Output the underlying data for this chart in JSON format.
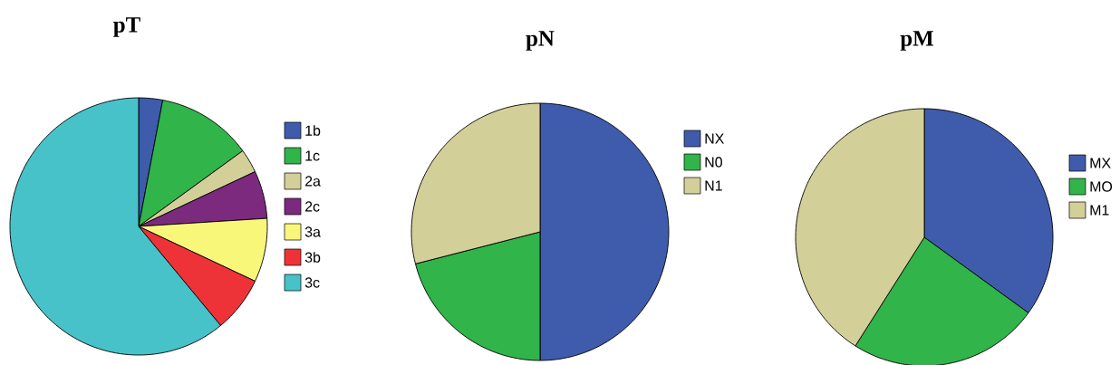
{
  "chart_data": [
    {
      "type": "pie",
      "title": "pT",
      "legend": "right",
      "categories": [
        "1b",
        "1c",
        "2a",
        "2c",
        "3a",
        "3b",
        "3c"
      ],
      "values": [
        3,
        12,
        3,
        6,
        8,
        7,
        61
      ],
      "colors": [
        "#3f5bab",
        "#31b44a",
        "#d3cf98",
        "#7b2a7d",
        "#f8f77a",
        "#ee3338",
        "#47c2c8"
      ]
    },
    {
      "type": "pie",
      "title": "pN",
      "legend": "right",
      "categories": [
        "NX",
        "N0",
        "N1"
      ],
      "values": [
        50,
        21,
        29
      ],
      "colors": [
        "#3f5bab",
        "#31b44a",
        "#d3cf98"
      ]
    },
    {
      "type": "pie",
      "title": "pM",
      "legend": "right",
      "categories": [
        "MX",
        "MO",
        "M1"
      ],
      "values": [
        35,
        24,
        41
      ],
      "colors": [
        "#3f5bab",
        "#31b44a",
        "#d3cf98"
      ]
    }
  ]
}
